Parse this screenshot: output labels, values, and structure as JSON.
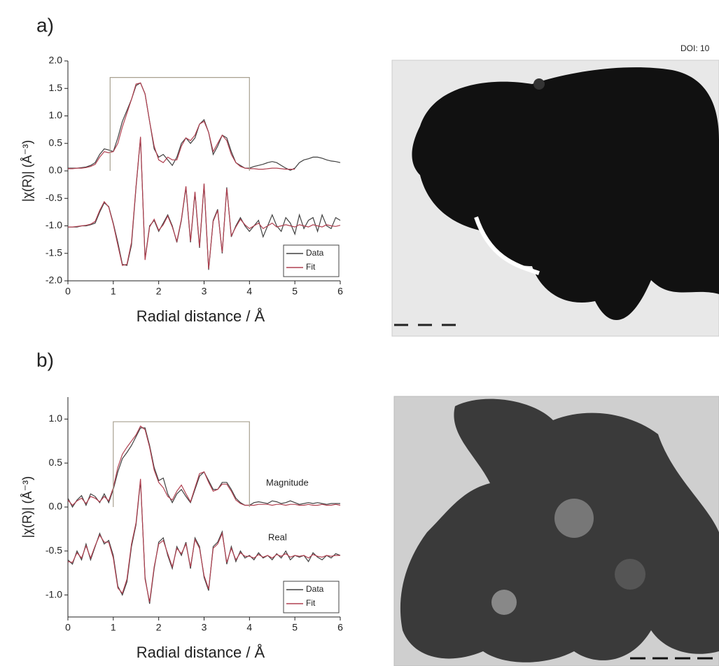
{
  "doi": "DOI: 10",
  "chart_data": [
    {
      "type": "line",
      "title": "a)",
      "xlabel": "Radial distance / Å",
      "ylabel": "|χ(R)| (Å⁻³)",
      "xlim": [
        0,
        6
      ],
      "ylim": [
        -2,
        2
      ],
      "xticks": [
        0,
        1,
        2,
        3,
        4,
        5,
        6
      ],
      "yticks": [
        {
          "value": 2,
          "label": "2.0"
        },
        1.5,
        {
          "value": 1,
          "label": "1.0"
        },
        0.5,
        {
          "value": 0,
          "label": "0.0"
        },
        -0.5,
        {
          "value": -1,
          "label": "-1.0"
        },
        -1.5,
        {
          "value": -2,
          "label": "-2.0"
        }
      ],
      "legend": "lower right",
      "x": [
        0,
        0.1,
        0.2,
        0.3,
        0.4,
        0.5,
        0.6,
        0.7,
        0.8,
        0.9,
        1,
        1.1,
        1.2,
        1.3,
        1.4,
        1.5,
        1.6,
        1.7,
        1.8,
        1.9,
        2,
        2.1,
        2.2,
        2.3,
        2.4,
        2.5,
        2.6,
        2.7,
        2.8,
        2.9,
        3,
        3.1,
        3.2,
        3.3,
        3.4,
        3.5,
        3.6,
        3.7,
        3.8,
        3.9,
        4,
        4.1,
        4.2,
        4.3,
        4.4,
        4.5,
        4.6,
        4.7,
        4.8,
        4.9,
        5,
        5.1,
        5.2,
        5.3,
        5.4,
        5.5,
        5.6,
        5.7,
        5.8,
        5.9,
        6
      ],
      "series": [
        {
          "name": "Data",
          "color": "#404040",
          "values": [
            0.05,
            0.05,
            0.05,
            0.06,
            0.07,
            0.1,
            0.15,
            0.3,
            0.4,
            0.38,
            0.35,
            0.6,
            0.9,
            1.1,
            1.3,
            1.55,
            1.6,
            1.4,
            0.9,
            0.4,
            0.25,
            0.3,
            0.2,
            0.1,
            0.25,
            0.5,
            0.6,
            0.5,
            0.6,
            0.85,
            0.93,
            0.7,
            0.3,
            0.45,
            0.65,
            0.6,
            0.35,
            0.15,
            0.1,
            0.05,
            0.05,
            0.08,
            0.1,
            0.12,
            0.15,
            0.17,
            0.15,
            0.1,
            0.05,
            0.01,
            0.05,
            0.15,
            0.2,
            0.22,
            0.25,
            0.25,
            0.23,
            0.2,
            0.18,
            0.17,
            0.15
          ]
        },
        {
          "name": "Fit",
          "color": "#b04050",
          "values": [
            0.04,
            0.04,
            0.05,
            0.05,
            0.06,
            0.08,
            0.12,
            0.25,
            0.35,
            0.33,
            0.35,
            0.5,
            0.8,
            1.05,
            1.3,
            1.58,
            1.6,
            1.4,
            0.9,
            0.45,
            0.2,
            0.15,
            0.25,
            0.2,
            0.2,
            0.45,
            0.6,
            0.55,
            0.65,
            0.85,
            0.9,
            0.7,
            0.35,
            0.5,
            0.65,
            0.55,
            0.3,
            0.15,
            0.08,
            0.05,
            0.04,
            0.04,
            0.03,
            0.03,
            0.04,
            0.05,
            0.05,
            0.04,
            0.03,
            0.03,
            0.03,
            null,
            null,
            null,
            null,
            null,
            null,
            null,
            null,
            null,
            null
          ]
        },
        {
          "color": "#404040",
          "values": [
            -1.02,
            -1.02,
            -1.02,
            -1,
            -1,
            -0.98,
            -0.95,
            -0.75,
            -0.58,
            -0.65,
            -0.95,
            -1.3,
            -1.7,
            -1.72,
            -1.35,
            -0.3,
            0.6,
            -1.6,
            -1,
            -0.9,
            -1.1,
            -0.95,
            -0.8,
            -1,
            -1.3,
            -0.9,
            -0.3,
            -1.3,
            -0.4,
            -1.4,
            -0.25,
            -1.8,
            -0.9,
            -0.7,
            -1.5,
            -0.3,
            -1.2,
            -1,
            -0.85,
            -1,
            -1.1,
            -1,
            -0.9,
            -1.2,
            -1,
            -0.8,
            -1,
            -1.1,
            -0.85,
            -0.95,
            -1.15,
            -0.8,
            -1.05,
            -0.9,
            -0.85,
            -1.1,
            -0.8,
            -1,
            -1.05,
            -0.85,
            -0.9
          ]
        },
        {
          "color": "#b04050",
          "values": [
            -1.02,
            -1.02,
            -1.01,
            -1,
            -0.99,
            -0.97,
            -0.92,
            -0.72,
            -0.56,
            -0.66,
            -0.97,
            -1.35,
            -1.72,
            -1.7,
            -1.3,
            -0.28,
            0.62,
            -1.62,
            -1.02,
            -0.88,
            -1.08,
            -0.98,
            -0.82,
            -1.02,
            -1.28,
            -0.88,
            -0.28,
            -1.28,
            -0.38,
            -1.38,
            -0.23,
            -1.78,
            -0.92,
            -0.72,
            -1.48,
            -0.32,
            -1.18,
            -1.02,
            -0.88,
            -0.98,
            -1.05,
            -1,
            -0.95,
            -1.05,
            -1,
            -0.95,
            -1.02,
            -1,
            -0.98,
            -1,
            -1.02,
            -0.98,
            -1,
            -1.02,
            -0.98,
            -1,
            -1.02,
            -0.98,
            -1,
            -1.01,
            -0.99
          ]
        },
        {
          "color": "#a8a090",
          "x": [
            0.93,
            0.93,
            4,
            4
          ],
          "values": [
            0,
            1.7,
            1.7,
            0
          ]
        }
      ]
    },
    {
      "type": "line",
      "title": "b)",
      "xlabel": "Radial distance / Å",
      "ylabel": "|χ(R)| (Å⁻³)",
      "xlim": [
        0,
        6
      ],
      "ylim": [
        -1.25,
        1.25
      ],
      "xticks": [
        0,
        1,
        2,
        3,
        4,
        5,
        6
      ],
      "yticks": [
        {
          "value": 1,
          "label": "1.0"
        },
        0.5,
        {
          "value": 0,
          "label": "0.0"
        },
        -0.5,
        {
          "value": -1,
          "label": "-1.0"
        }
      ],
      "legend": "lower right",
      "annotations": [
        "Magnitude",
        "Real"
      ],
      "x": [
        0,
        0.1,
        0.2,
        0.3,
        0.4,
        0.5,
        0.6,
        0.7,
        0.8,
        0.9,
        1,
        1.1,
        1.2,
        1.3,
        1.4,
        1.5,
        1.6,
        1.7,
        1.8,
        1.9,
        2,
        2.1,
        2.2,
        2.3,
        2.4,
        2.5,
        2.6,
        2.7,
        2.8,
        2.9,
        3,
        3.1,
        3.2,
        3.3,
        3.4,
        3.5,
        3.6,
        3.7,
        3.8,
        3.9,
        4,
        4.1,
        4.2,
        4.3,
        4.4,
        4.5,
        4.6,
        4.7,
        4.8,
        4.9,
        5,
        5.1,
        5.2,
        5.3,
        5.4,
        5.5,
        5.6,
        5.7,
        5.8,
        5.9,
        6
      ],
      "series": [
        {
          "name": "Data",
          "color": "#404040",
          "values": [
            0.1,
            0,
            0.08,
            0.13,
            0.02,
            0.15,
            0.12,
            0.05,
            0.15,
            0.05,
            0.2,
            0.4,
            0.55,
            0.62,
            0.7,
            0.8,
            0.9,
            0.9,
            0.7,
            0.45,
            0.3,
            0.33,
            0.15,
            0.05,
            0.15,
            0.2,
            0.12,
            0.05,
            0.2,
            0.35,
            0.4,
            0.3,
            0.2,
            0.2,
            0.28,
            0.28,
            0.2,
            0.1,
            0.05,
            0.02,
            0.02,
            0.05,
            0.06,
            0.05,
            0.04,
            0.07,
            0.06,
            0.04,
            0.05,
            0.07,
            0.05,
            0.03,
            0.04,
            0.05,
            0.04,
            0.05,
            0.04,
            0.03,
            0.04,
            0.04,
            0.04
          ]
        },
        {
          "name": "Fit",
          "color": "#b04050",
          "values": [
            0.08,
            0.02,
            0.07,
            0.1,
            0.04,
            0.12,
            0.1,
            0.06,
            0.12,
            0.07,
            0.22,
            0.45,
            0.6,
            0.68,
            0.75,
            0.82,
            0.92,
            0.88,
            0.68,
            0.42,
            0.28,
            0.22,
            0.12,
            0.08,
            0.18,
            0.25,
            0.15,
            0.06,
            0.22,
            0.38,
            0.4,
            0.28,
            0.18,
            0.2,
            0.26,
            0.26,
            0.18,
            0.08,
            0.04,
            0.02,
            0.02,
            0.02,
            0.03,
            0.03,
            0.03,
            0.02,
            0.03,
            0.03,
            0.02,
            0.03,
            0.03,
            0.02,
            0.02,
            0.03,
            0.02,
            0.02,
            0.03,
            0.02,
            0.02,
            0.03,
            0.02
          ]
        },
        {
          "color": "#404040",
          "values": [
            -0.6,
            -0.65,
            -0.5,
            -0.6,
            -0.42,
            -0.6,
            -0.45,
            -0.3,
            -0.42,
            -0.38,
            -0.55,
            -0.9,
            -1,
            -0.85,
            -0.45,
            -0.2,
            0.3,
            -0.8,
            -1.1,
            -0.7,
            -0.4,
            -0.35,
            -0.55,
            -0.7,
            -0.45,
            -0.55,
            -0.4,
            -0.7,
            -0.35,
            -0.45,
            -0.8,
            -0.95,
            -0.45,
            -0.4,
            -0.28,
            -0.65,
            -0.45,
            -0.62,
            -0.5,
            -0.58,
            -0.55,
            -0.6,
            -0.52,
            -0.58,
            -0.55,
            -0.6,
            -0.53,
            -0.58,
            -0.5,
            -0.6,
            -0.55,
            -0.57,
            -0.55,
            -0.62,
            -0.52,
            -0.57,
            -0.6,
            -0.55,
            -0.58,
            -0.53,
            -0.55
          ]
        },
        {
          "color": "#b04050",
          "values": [
            -0.62,
            -0.63,
            -0.52,
            -0.58,
            -0.44,
            -0.58,
            -0.44,
            -0.32,
            -0.4,
            -0.4,
            -0.58,
            -0.92,
            -0.98,
            -0.82,
            -0.42,
            -0.18,
            0.32,
            -0.82,
            -1.08,
            -0.68,
            -0.42,
            -0.38,
            -0.53,
            -0.68,
            -0.47,
            -0.53,
            -0.42,
            -0.68,
            -0.37,
            -0.47,
            -0.78,
            -0.93,
            -0.47,
            -0.42,
            -0.3,
            -0.63,
            -0.47,
            -0.6,
            -0.52,
            -0.56,
            -0.56,
            -0.58,
            -0.54,
            -0.57,
            -0.55,
            -0.58,
            -0.54,
            -0.56,
            -0.53,
            -0.57,
            -0.55,
            -0.56,
            -0.55,
            -0.58,
            -0.54,
            -0.56,
            -0.57,
            -0.55,
            -0.56,
            -0.55,
            -0.55
          ]
        },
        {
          "color": "#a8a090",
          "x": [
            1,
            1,
            4,
            4
          ],
          "values": [
            0,
            0.97,
            0.97,
            0
          ]
        }
      ]
    }
  ]
}
